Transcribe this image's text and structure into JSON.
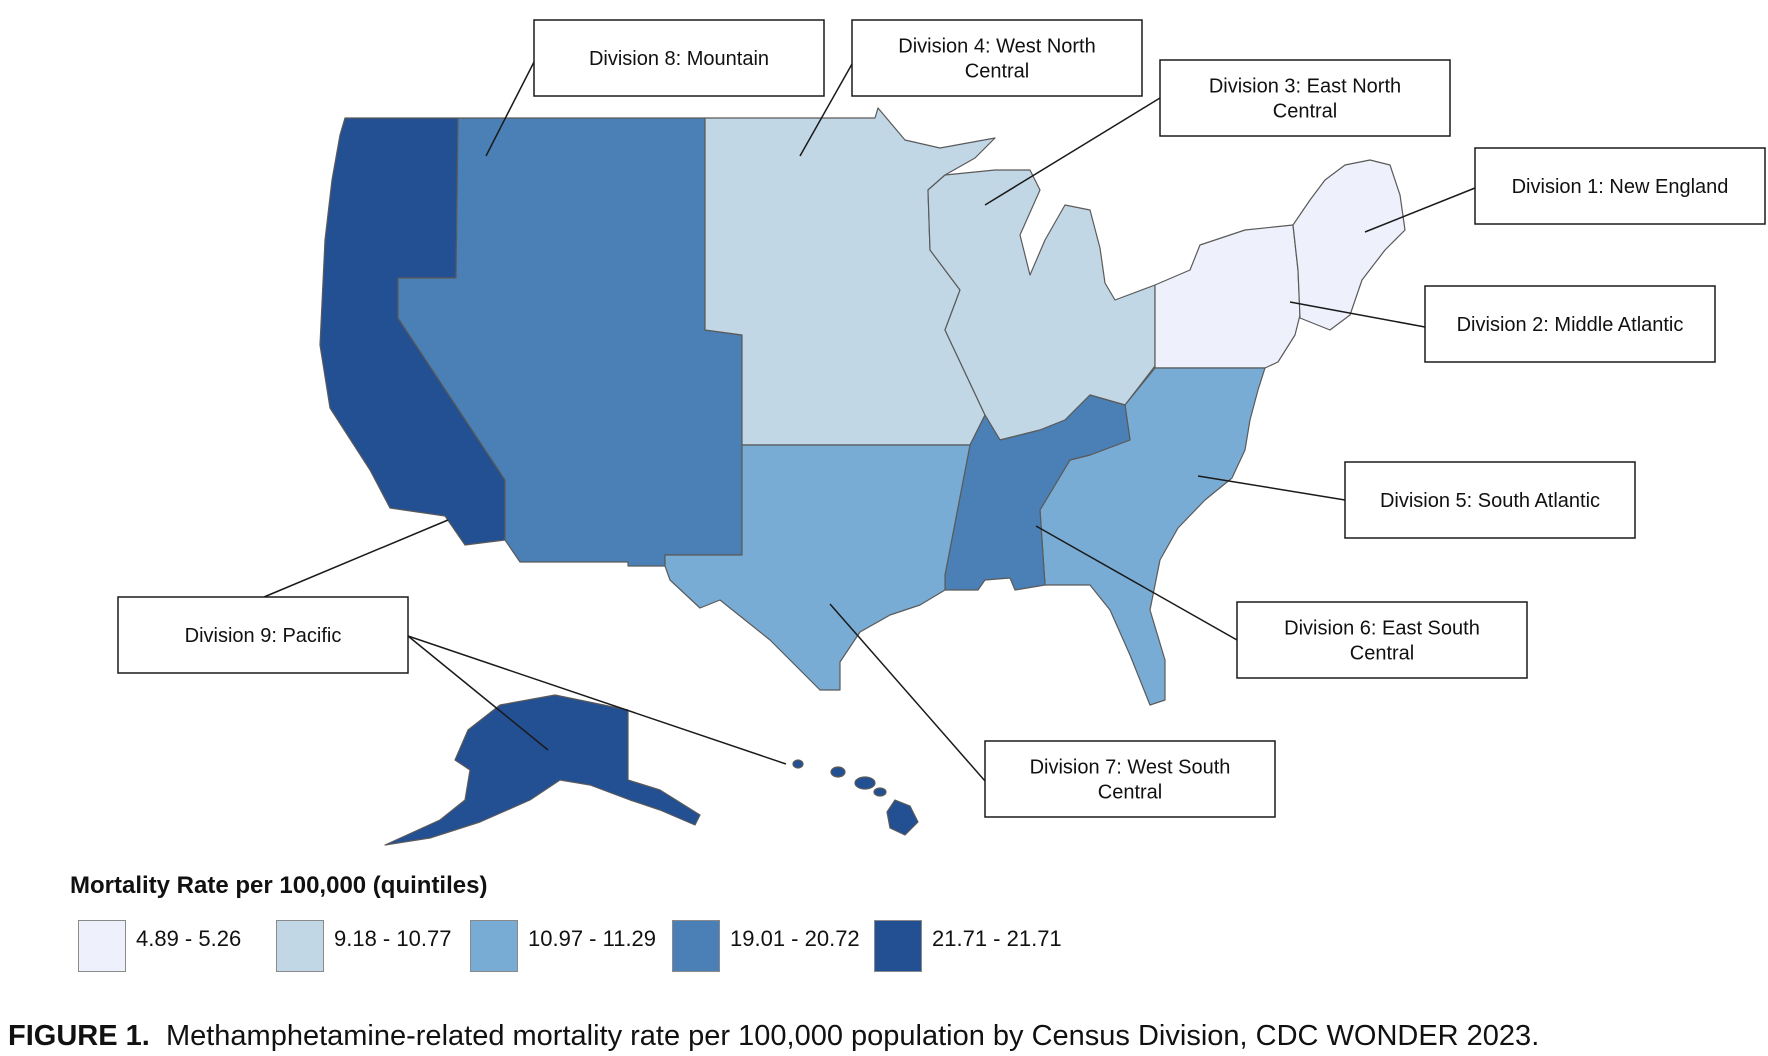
{
  "legend": {
    "title": "Mortality Rate per 100,000 (quintiles)",
    "bins": [
      {
        "label": "4.89 - 5.26",
        "color": "#eef1fb"
      },
      {
        "label": "9.18 - 10.77",
        "color": "#c2d7e6"
      },
      {
        "label": "10.97 - 11.29",
        "color": "#79acd4"
      },
      {
        "label": "19.01 - 20.72",
        "color": "#4a80b6"
      },
      {
        "label": "21.71 - 21.71",
        "color": "#234f93"
      }
    ]
  },
  "divisions": [
    {
      "id": "d1",
      "line1": "Division 1: New England",
      "line2": "",
      "bin": 0
    },
    {
      "id": "d2",
      "line1": "Division 2: Middle Atlantic",
      "line2": "",
      "bin": 0
    },
    {
      "id": "d3",
      "line1": "Division 3: East North",
      "line2": "Central",
      "bin": 1
    },
    {
      "id": "d4",
      "line1": "Division 4: West North",
      "line2": "Central",
      "bin": 1
    },
    {
      "id": "d5",
      "line1": "Division 5: South Atlantic",
      "line2": "",
      "bin": 2
    },
    {
      "id": "d6",
      "line1": "Division 6: East South",
      "line2": "Central",
      "bin": 3
    },
    {
      "id": "d7",
      "line1": "Division 7: West South",
      "line2": "Central",
      "bin": 2
    },
    {
      "id": "d8",
      "line1": "Division 8: Mountain",
      "line2": "",
      "bin": 3
    },
    {
      "id": "d9",
      "line1": "Division 9: Pacific",
      "line2": "",
      "bin": 4
    }
  ],
  "caption": {
    "prefix": "FIGURE 1.",
    "text": "Methamphetamine-related mortality rate per 100,000 population by Census Division, CDC WONDER 2023."
  }
}
